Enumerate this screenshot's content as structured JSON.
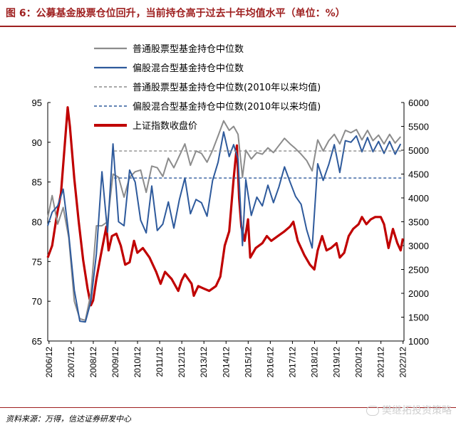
{
  "title": "图 6：公募基金股票仓位回升，当前持仓高于过去十年均值水平（单位：%）",
  "source": "资料来源：万得，信达证券研发中心",
  "watermark": "樊继拓投资策略",
  "colors": {
    "stock_fund": "#8c8c8c",
    "hybrid_fund": "#2e5a9c",
    "index": "#c00000",
    "title": "#9e1f1f"
  },
  "chart_data": {
    "type": "line",
    "y_left": {
      "range": [
        65,
        95
      ],
      "ticks": [
        "65",
        "70",
        "75",
        "80",
        "85",
        "90",
        "95"
      ]
    },
    "y_right": {
      "range": [
        1000,
        6000
      ],
      "ticks": [
        "1000",
        "1500",
        "2000",
        "2500",
        "3000",
        "3500",
        "4000",
        "4500",
        "5000",
        "5500",
        "6000"
      ]
    },
    "x_ticks": [
      "2006/12",
      "2007/12",
      "2008/12",
      "2009/12",
      "2010/12",
      "2011/12",
      "2012/12",
      "2013/12",
      "2014/12",
      "2015/12",
      "2016/12",
      "2017/12",
      "2018/12",
      "2019/12",
      "2020/12",
      "2021/12",
      "2022/12"
    ],
    "x_range": [
      2006.9,
      2023.0
    ],
    "legend": [
      {
        "label": "普通股票型基金持仓中位数",
        "style": "solid",
        "color": "#8c8c8c"
      },
      {
        "label": "偏股混合型基金持仓中位数",
        "style": "solid",
        "color": "#2e5a9c"
      },
      {
        "label": "普通股票型基金持仓中位数(2010年以来均值)",
        "style": "dashed",
        "color": "#8c8c8c"
      },
      {
        "label": "偏股混合型基金持仓中位数(2010年以来均值)",
        "style": "dashed",
        "color": "#2e5a9c"
      },
      {
        "label": "上证指数收盘价",
        "style": "solid",
        "color": "#c00000"
      }
    ],
    "series": [
      {
        "name": "普通股票型基金持仓中位数",
        "axis": "left",
        "points": [
          [
            2006.9,
            80.5
          ],
          [
            2007.1,
            83.3
          ],
          [
            2007.35,
            79.7
          ],
          [
            2007.6,
            81.8
          ],
          [
            2007.85,
            78
          ],
          [
            2008.1,
            70
          ],
          [
            2008.35,
            67.8
          ],
          [
            2008.6,
            67.6
          ],
          [
            2008.85,
            71
          ],
          [
            2009.1,
            79.5
          ],
          [
            2009.35,
            79.5
          ],
          [
            2009.6,
            80
          ],
          [
            2009.85,
            86
          ],
          [
            2010.1,
            85.6
          ],
          [
            2010.35,
            83.1
          ],
          [
            2010.6,
            85.6
          ],
          [
            2010.85,
            86.3
          ],
          [
            2011.1,
            86.5
          ],
          [
            2011.35,
            83.7
          ],
          [
            2011.6,
            87
          ],
          [
            2011.85,
            86.8
          ],
          [
            2012.1,
            85.7
          ],
          [
            2012.35,
            88
          ],
          [
            2012.6,
            86.8
          ],
          [
            2012.85,
            88.3
          ],
          [
            2013.1,
            89.8
          ],
          [
            2013.35,
            87.1
          ],
          [
            2013.6,
            88.9
          ],
          [
            2013.85,
            88.6
          ],
          [
            2014.1,
            87.5
          ],
          [
            2014.35,
            89
          ],
          [
            2014.6,
            90.8
          ],
          [
            2014.85,
            92.7
          ],
          [
            2015.1,
            91.5
          ],
          [
            2015.3,
            92
          ],
          [
            2015.5,
            91
          ],
          [
            2015.7,
            85.6
          ],
          [
            2015.85,
            89
          ],
          [
            2016.1,
            87.9
          ],
          [
            2016.35,
            88.7
          ],
          [
            2016.6,
            88.5
          ],
          [
            2016.85,
            89.3
          ],
          [
            2017.1,
            88.7
          ],
          [
            2017.35,
            89.6
          ],
          [
            2017.6,
            90.5
          ],
          [
            2017.85,
            89.8
          ],
          [
            2018.1,
            89.2
          ],
          [
            2018.35,
            88.5
          ],
          [
            2018.6,
            87.7
          ],
          [
            2018.85,
            86.4
          ],
          [
            2019.1,
            90.3
          ],
          [
            2019.35,
            88.9
          ],
          [
            2019.6,
            90.2
          ],
          [
            2019.85,
            91
          ],
          [
            2020.1,
            89.8
          ],
          [
            2020.35,
            91.5
          ],
          [
            2020.6,
            91.2
          ],
          [
            2020.85,
            91.6
          ],
          [
            2021.1,
            90.3
          ],
          [
            2021.35,
            91.5
          ],
          [
            2021.6,
            90.2
          ],
          [
            2021.85,
            90.9
          ],
          [
            2022.1,
            89.8
          ],
          [
            2022.35,
            91
          ],
          [
            2022.6,
            89.9
          ],
          [
            2022.85,
            90.7
          ]
        ]
      },
      {
        "name": "偏股混合型基金持仓中位数",
        "axis": "left",
        "points": [
          [
            2006.9,
            79.5
          ],
          [
            2007.1,
            81.2
          ],
          [
            2007.35,
            82
          ],
          [
            2007.6,
            84.1
          ],
          [
            2007.85,
            78.4
          ],
          [
            2008.1,
            71.4
          ],
          [
            2008.35,
            67.5
          ],
          [
            2008.6,
            67.4
          ],
          [
            2008.85,
            70
          ],
          [
            2009.1,
            76
          ],
          [
            2009.35,
            86.3
          ],
          [
            2009.6,
            78.7
          ],
          [
            2009.85,
            89.8
          ],
          [
            2010.1,
            80
          ],
          [
            2010.35,
            79.5
          ],
          [
            2010.6,
            86.5
          ],
          [
            2010.85,
            85
          ],
          [
            2011.1,
            80.2
          ],
          [
            2011.35,
            78.6
          ],
          [
            2011.6,
            84.5
          ],
          [
            2011.85,
            78.9
          ],
          [
            2012.1,
            79.7
          ],
          [
            2012.35,
            82.5
          ],
          [
            2012.6,
            79.2
          ],
          [
            2012.85,
            82.8
          ],
          [
            2013.1,
            85.5
          ],
          [
            2013.35,
            81
          ],
          [
            2013.6,
            82.8
          ],
          [
            2013.85,
            82.4
          ],
          [
            2014.1,
            80.7
          ],
          [
            2014.35,
            85.2
          ],
          [
            2014.6,
            87.5
          ],
          [
            2014.85,
            91.3
          ],
          [
            2015.1,
            88.2
          ],
          [
            2015.3,
            89.7
          ],
          [
            2015.5,
            87.9
          ],
          [
            2015.7,
            77
          ],
          [
            2015.85,
            85.3
          ],
          [
            2016.1,
            80.8
          ],
          [
            2016.35,
            83.1
          ],
          [
            2016.6,
            82
          ],
          [
            2016.85,
            84.6
          ],
          [
            2017.1,
            82.4
          ],
          [
            2017.35,
            84.4
          ],
          [
            2017.6,
            86.9
          ],
          [
            2017.85,
            85
          ],
          [
            2018.1,
            83.2
          ],
          [
            2018.35,
            82.2
          ],
          [
            2018.6,
            79
          ],
          [
            2018.85,
            76.7
          ],
          [
            2019.1,
            87.3
          ],
          [
            2019.35,
            85.2
          ],
          [
            2019.6,
            87.2
          ],
          [
            2019.85,
            89.7
          ],
          [
            2020.1,
            86.2
          ],
          [
            2020.35,
            90.2
          ],
          [
            2020.6,
            90
          ],
          [
            2020.85,
            90.8
          ],
          [
            2021.1,
            88.8
          ],
          [
            2021.35,
            90.6
          ],
          [
            2021.6,
            88.8
          ],
          [
            2021.85,
            90.1
          ],
          [
            2022.1,
            88.6
          ],
          [
            2022.35,
            90.1
          ],
          [
            2022.6,
            88.5
          ],
          [
            2022.85,
            89.8
          ]
        ]
      },
      {
        "name": "普通股票型基金持仓中位数(2010年以来均值)",
        "axis": "left",
        "style": "dashed",
        "points": [
          [
            2009.9,
            88.9
          ],
          [
            2023.0,
            88.9
          ]
        ]
      },
      {
        "name": "偏股混合型基金持仓中位数(2010年以来均值)",
        "axis": "left",
        "style": "dashed",
        "points": [
          [
            2009.9,
            85.5
          ],
          [
            2023.0,
            85.5
          ]
        ]
      },
      {
        "name": "上证指数收盘价",
        "axis": "right",
        "points": [
          [
            2006.9,
            2750
          ],
          [
            2007.1,
            3000
          ],
          [
            2007.3,
            3600
          ],
          [
            2007.5,
            4100
          ],
          [
            2007.8,
            5900
          ],
          [
            2007.9,
            5500
          ],
          [
            2008.1,
            4400
          ],
          [
            2008.3,
            3500
          ],
          [
            2008.5,
            2700
          ],
          [
            2008.7,
            2100
          ],
          [
            2008.85,
            1750
          ],
          [
            2008.95,
            1850
          ],
          [
            2009.1,
            2300
          ],
          [
            2009.3,
            2800
          ],
          [
            2009.55,
            3400
          ],
          [
            2009.65,
            2900
          ],
          [
            2009.8,
            3200
          ],
          [
            2010.0,
            3250
          ],
          [
            2010.2,
            3000
          ],
          [
            2010.4,
            2600
          ],
          [
            2010.6,
            2650
          ],
          [
            2010.8,
            3100
          ],
          [
            2010.95,
            2850
          ],
          [
            2011.2,
            2950
          ],
          [
            2011.5,
            2750
          ],
          [
            2011.8,
            2450
          ],
          [
            2012.0,
            2200
          ],
          [
            2012.2,
            2450
          ],
          [
            2012.5,
            2300
          ],
          [
            2012.8,
            2050
          ],
          [
            2012.95,
            2270
          ],
          [
            2013.1,
            2400
          ],
          [
            2013.4,
            2200
          ],
          [
            2013.5,
            1950
          ],
          [
            2013.7,
            2150
          ],
          [
            2013.95,
            2100
          ],
          [
            2014.2,
            2050
          ],
          [
            2014.5,
            2150
          ],
          [
            2014.7,
            2350
          ],
          [
            2014.9,
            3000
          ],
          [
            2015.1,
            3300
          ],
          [
            2015.3,
            4400
          ],
          [
            2015.45,
            5100
          ],
          [
            2015.55,
            4000
          ],
          [
            2015.65,
            3400
          ],
          [
            2015.8,
            3100
          ],
          [
            2015.95,
            3550
          ],
          [
            2016.05,
            2750
          ],
          [
            2016.3,
            2950
          ],
          [
            2016.6,
            3050
          ],
          [
            2016.8,
            3200
          ],
          [
            2017.0,
            3100
          ],
          [
            2017.3,
            3200
          ],
          [
            2017.6,
            3300
          ],
          [
            2017.85,
            3400
          ],
          [
            2018.0,
            3500
          ],
          [
            2018.2,
            3100
          ],
          [
            2018.5,
            2800
          ],
          [
            2018.75,
            2600
          ],
          [
            2018.95,
            2500
          ],
          [
            2019.1,
            2900
          ],
          [
            2019.3,
            3200
          ],
          [
            2019.5,
            2900
          ],
          [
            2019.7,
            2950
          ],
          [
            2019.95,
            3050
          ],
          [
            2020.1,
            2750
          ],
          [
            2020.3,
            2850
          ],
          [
            2020.5,
            3200
          ],
          [
            2020.7,
            3350
          ],
          [
            2020.95,
            3450
          ],
          [
            2021.1,
            3600
          ],
          [
            2021.3,
            3450
          ],
          [
            2021.5,
            3550
          ],
          [
            2021.7,
            3600
          ],
          [
            2021.95,
            3600
          ],
          [
            2022.1,
            3450
          ],
          [
            2022.3,
            2950
          ],
          [
            2022.5,
            3350
          ],
          [
            2022.7,
            3050
          ],
          [
            2022.85,
            2900
          ],
          [
            2022.95,
            3150
          ]
        ]
      }
    ]
  }
}
